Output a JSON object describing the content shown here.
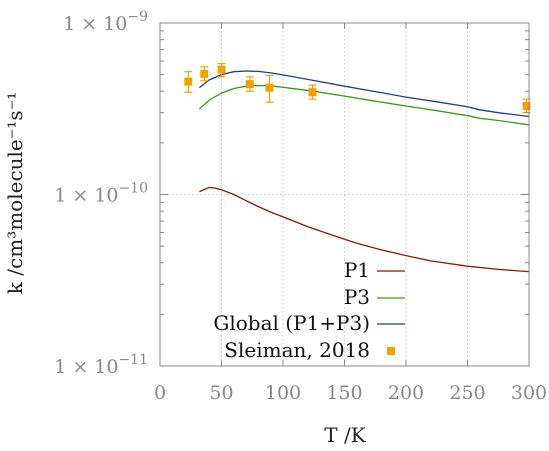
{
  "chart_data": {
    "type": "line",
    "xlabel": "T /K",
    "ylabel": "k /cm³molecule⁻¹s⁻¹",
    "xlim": [
      0,
      300
    ],
    "ylim": [
      1e-11,
      1e-09
    ],
    "y_scale": "log",
    "grid": true,
    "legend_placement": "bottom-right",
    "x_ticks": [
      {
        "value": 0,
        "label": "0"
      },
      {
        "value": 50,
        "label": "50"
      },
      {
        "value": 100,
        "label": "100"
      },
      {
        "value": 150,
        "label": "150"
      },
      {
        "value": 200,
        "label": "200"
      },
      {
        "value": 250,
        "label": "250"
      },
      {
        "value": 300,
        "label": "300"
      }
    ],
    "y_ticks": [
      {
        "value": 1e-11,
        "base": "1 × 10",
        "exp": "−11"
      },
      {
        "value": 1e-10,
        "base": "1 × 10",
        "exp": "−10"
      },
      {
        "value": 1e-09,
        "base": "1 × 10",
        "exp": "−9"
      }
    ],
    "series": [
      {
        "name": "P1",
        "kind": "line",
        "color": "#8b1a00",
        "x": [
          32,
          40,
          45,
          50,
          60,
          70,
          80,
          90,
          100,
          120,
          140,
          160,
          180,
          200,
          220,
          250,
          275,
          300
        ],
        "y": [
          1.04e-10,
          1.1e-10,
          1.09e-10,
          1.065e-10,
          1e-10,
          9.2e-11,
          8.5e-11,
          7.9e-11,
          7.4e-11,
          6.5e-11,
          5.8e-11,
          5.2e-11,
          4.75e-11,
          4.4e-11,
          4.1e-11,
          3.82e-11,
          3.66e-11,
          3.55e-11
        ]
      },
      {
        "name": "P3",
        "kind": "line",
        "color": "#3a9a1a",
        "x": [
          32,
          40,
          50,
          60,
          70,
          80,
          90,
          100,
          125,
          150,
          175,
          200,
          225,
          250,
          260,
          275,
          300
        ],
        "y": [
          3.15e-10,
          3.55e-10,
          3.9e-10,
          4.15e-10,
          4.28e-10,
          4.32e-10,
          4.3e-10,
          4.22e-10,
          4e-10,
          3.75e-10,
          3.5e-10,
          3.28e-10,
          3.08e-10,
          2.88e-10,
          2.78e-10,
          2.7e-10,
          2.55e-10
        ]
      },
      {
        "name": "Global (P1+P3)",
        "kind": "line",
        "color": "#1f3e8a",
        "x": [
          32,
          40,
          50,
          60,
          70,
          80,
          90,
          100,
          125,
          150,
          175,
          200,
          225,
          250,
          260,
          275,
          300
        ],
        "y": [
          4.2e-10,
          4.65e-10,
          5e-10,
          5.2e-10,
          5.25e-10,
          5.22e-10,
          5.12e-10,
          4.98e-10,
          4.62e-10,
          4.28e-10,
          3.98e-10,
          3.7e-10,
          3.47e-10,
          3.25e-10,
          3.12e-10,
          3e-10,
          2.85e-10
        ]
      },
      {
        "name": "Sleiman, 2018",
        "kind": "scatter",
        "color": "#f5a000",
        "x": [
          23,
          36,
          50,
          73,
          89,
          124,
          298
        ],
        "y": [
          4.55e-10,
          5.05e-10,
          5.35e-10,
          4.4e-10,
          4.2e-10,
          3.95e-10,
          3.28e-10
        ],
        "y_err_low": [
          3.95e-10,
          4.6e-10,
          4.85e-10,
          4e-10,
          3.45e-10,
          3.6e-10,
          3e-10
        ],
        "y_err_high": [
          5.2e-10,
          5.55e-10,
          5.8e-10,
          4.85e-10,
          4.95e-10,
          4.35e-10,
          3.6e-10
        ]
      }
    ]
  }
}
